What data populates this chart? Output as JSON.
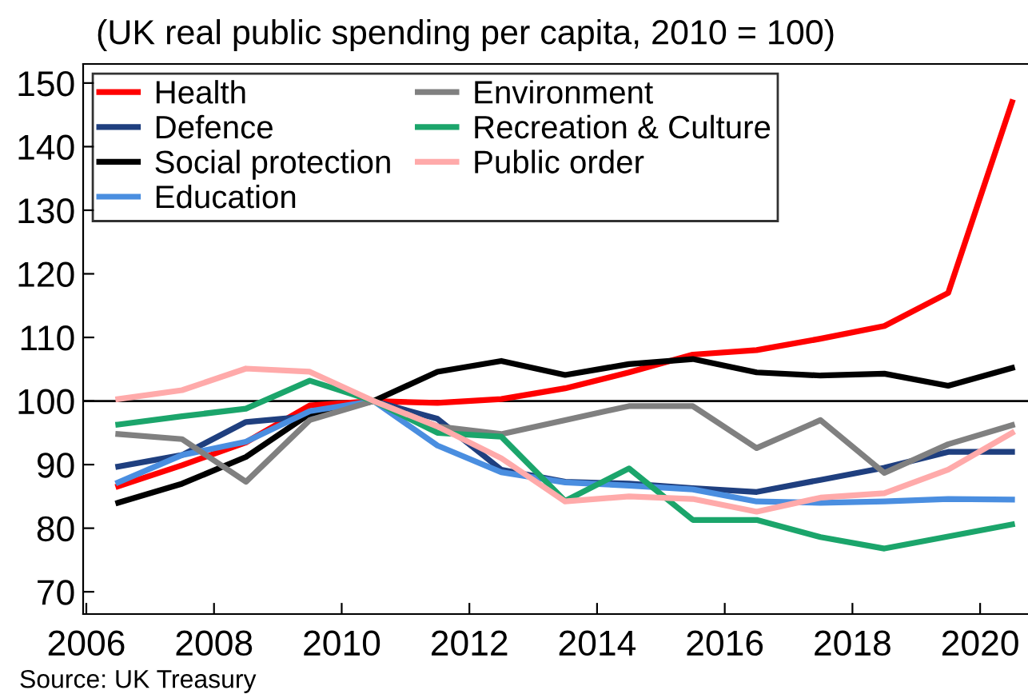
{
  "chart_data": {
    "type": "line",
    "title": "(UK real public spending per capita, 2010 = 100)",
    "x": [
      2006.5,
      2007.5,
      2008.5,
      2009.5,
      2010.5,
      2011.5,
      2012.5,
      2013.5,
      2014.5,
      2015.5,
      2016.5,
      2017.5,
      2018.5,
      2019.5,
      2020.5
    ],
    "series": [
      {
        "name": "Health",
        "color": "#ff0000",
        "values": [
          86.6,
          89.9,
          93.5,
          99.3,
          100,
          99.7,
          100.3,
          102,
          104.5,
          107.3,
          108,
          109.8,
          111.8,
          117,
          147
        ]
      },
      {
        "name": "Defence",
        "color": "#1f3f7f",
        "values": [
          89.7,
          91.5,
          96.7,
          97.6,
          100,
          97.2,
          89.2,
          87.3,
          87,
          86.3,
          85.7,
          87.6,
          89.5,
          92,
          92
        ]
      },
      {
        "name": "Social protection",
        "color": "#000000",
        "values": [
          84,
          87,
          91.2,
          98,
          100,
          104.6,
          106.3,
          104.1,
          105.8,
          106.6,
          104.5,
          104,
          104.3,
          102.4,
          105.2
        ]
      },
      {
        "name": "Education",
        "color": "#4a8ee0",
        "values": [
          87.2,
          91.5,
          93.6,
          98.4,
          100,
          93,
          88.8,
          87.2,
          86.7,
          86.1,
          84.2,
          84,
          84.2,
          84.6,
          84.5
        ]
      },
      {
        "name": "Environment",
        "color": "#808080",
        "values": [
          94.8,
          94,
          87.3,
          97,
          100,
          96,
          94.8,
          97,
          99.2,
          99.2,
          92.6,
          97,
          88.7,
          93.2,
          96.2
        ]
      },
      {
        "name": "Recreation & Culture",
        "color": "#1ba56b",
        "values": [
          96.3,
          97.6,
          98.8,
          103.2,
          100,
          95,
          94.4,
          84.3,
          89.4,
          81.3,
          81.3,
          78.6,
          76.8,
          78.7,
          80.6
        ]
      },
      {
        "name": "Public order",
        "color": "#ffaaaa",
        "values": [
          100.3,
          101.7,
          105.1,
          104.6,
          100,
          96,
          91,
          84.2,
          85,
          84.6,
          82.6,
          84.8,
          85.5,
          89.2,
          95
        ]
      }
    ],
    "xlim": [
      2005.95,
      2020.75
    ],
    "xticks": [
      2006,
      2008,
      2010,
      2012,
      2014,
      2016,
      2018,
      2020
    ],
    "ylim": [
      66.5,
      153
    ],
    "yticks": [
      70,
      80,
      90,
      100,
      110,
      120,
      130,
      140,
      150
    ],
    "ref_lines": [
      {
        "axis": "y",
        "value": 100,
        "color": "#000000"
      }
    ],
    "grid": false,
    "legend": "top left",
    "marker": "none",
    "line_style": "solid",
    "annotations": [
      "Source: UK Treasury"
    ]
  }
}
